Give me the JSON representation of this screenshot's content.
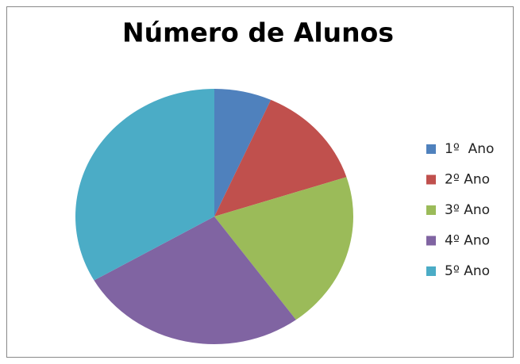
{
  "chart_data": {
    "type": "pie",
    "title": "Número de Alunos",
    "categories": [
      "1º  Ano",
      "2º Ano",
      "3º Ano",
      "4º Ano",
      "5º Ano"
    ],
    "values": [
      1,
      2,
      3,
      4,
      5
    ],
    "colors": [
      "#4f81bd",
      "#c0504d",
      "#9bbb59",
      "#8064a2",
      "#4bacc6"
    ],
    "legend": "right"
  }
}
